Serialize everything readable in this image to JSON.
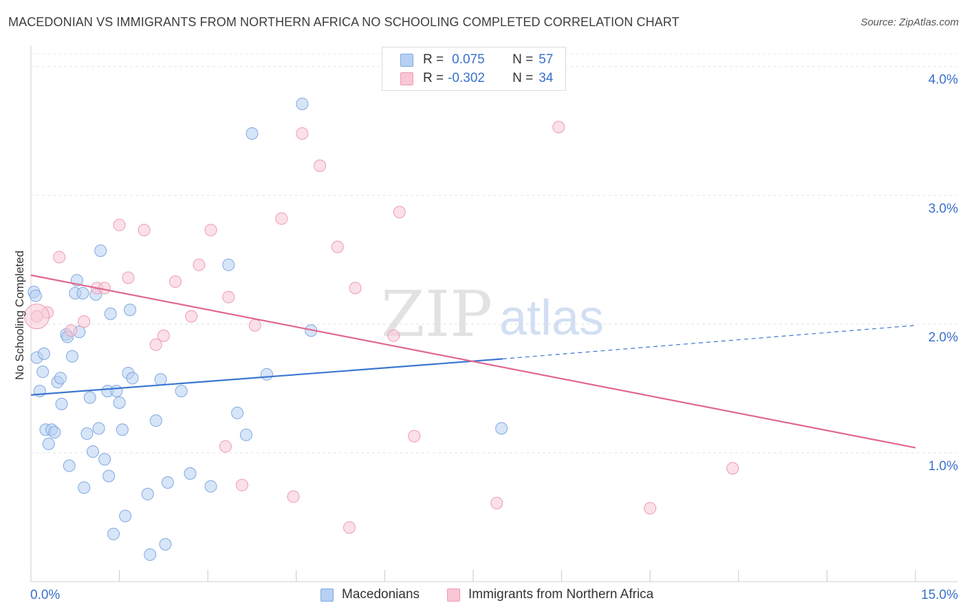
{
  "title": "MACEDONIAN VS IMMIGRANTS FROM NORTHERN AFRICA NO SCHOOLING COMPLETED CORRELATION CHART",
  "source": "Source: ZipAtlas.com",
  "watermark": {
    "zip": "ZIP",
    "atlas": "atlas"
  },
  "stats_legend": {
    "r_label": "R =",
    "n_label": "N =",
    "rows": [
      {
        "r": "0.075",
        "n": "57",
        "fill": "#b6d0f3",
        "stroke": "#7fa8e0"
      },
      {
        "r": "-0.302",
        "n": "34",
        "fill": "#f8c6d4",
        "stroke": "#ec9bb3"
      }
    ]
  },
  "chart_data": {
    "type": "scatter",
    "title": "MACEDONIAN VS IMMIGRANTS FROM NORTHERN AFRICA NO SCHOOLING COMPLETED CORRELATION CHART",
    "xlabel": "",
    "ylabel": "No Schooling Completed",
    "xlim": [
      0,
      15
    ],
    "ylim": [
      0,
      4.1
    ],
    "x_ticks": [
      0,
      1.5,
      3,
      4.5,
      6,
      7.5,
      9,
      10.5,
      12,
      13.5,
      15
    ],
    "x_tick_labels": {
      "min": "0.0%",
      "max": "15.0%"
    },
    "y_ticks": [
      1,
      2,
      3,
      4
    ],
    "y_tick_labels": [
      "1.0%",
      "2.0%",
      "3.0%",
      "4.0%"
    ],
    "grid": "horizontal dashed",
    "legend_position": "bottom-center",
    "series": [
      {
        "name": "Macedonians",
        "color": "#3a76d0",
        "fill": "#b6d0f3",
        "stroke": "#7fa8e0",
        "trend": {
          "x1": 0,
          "y1": 1.45,
          "x2": 8,
          "y2": 1.73,
          "dash_to_x": 15,
          "dash_to_y": 1.99
        },
        "points": [
          [
            0.05,
            2.25
          ],
          [
            0.08,
            2.22
          ],
          [
            0.1,
            1.74
          ],
          [
            0.15,
            1.48
          ],
          [
            0.2,
            1.63
          ],
          [
            0.22,
            1.77
          ],
          [
            0.25,
            1.18
          ],
          [
            0.3,
            1.07
          ],
          [
            0.35,
            1.18
          ],
          [
            0.4,
            1.16
          ],
          [
            0.45,
            1.55
          ],
          [
            0.5,
            1.58
          ],
          [
            0.52,
            1.38
          ],
          [
            0.6,
            1.92
          ],
          [
            0.62,
            1.9
          ],
          [
            0.65,
            0.9
          ],
          [
            0.7,
            1.75
          ],
          [
            0.75,
            2.24
          ],
          [
            0.78,
            2.34
          ],
          [
            0.82,
            1.94
          ],
          [
            0.88,
            2.24
          ],
          [
            0.9,
            0.73
          ],
          [
            0.95,
            1.15
          ],
          [
            1.0,
            1.43
          ],
          [
            1.05,
            1.01
          ],
          [
            1.1,
            2.23
          ],
          [
            1.15,
            1.19
          ],
          [
            1.18,
            2.57
          ],
          [
            1.25,
            0.95
          ],
          [
            1.3,
            1.48
          ],
          [
            1.32,
            0.82
          ],
          [
            1.35,
            2.08
          ],
          [
            1.4,
            0.37
          ],
          [
            1.45,
            1.48
          ],
          [
            1.5,
            1.39
          ],
          [
            1.55,
            1.18
          ],
          [
            1.6,
            0.51
          ],
          [
            1.65,
            1.62
          ],
          [
            1.68,
            2.11
          ],
          [
            1.72,
            1.58
          ],
          [
            1.98,
            0.68
          ],
          [
            2.02,
            0.21
          ],
          [
            2.12,
            1.25
          ],
          [
            2.2,
            1.57
          ],
          [
            2.28,
            0.29
          ],
          [
            2.32,
            0.77
          ],
          [
            2.55,
            1.48
          ],
          [
            2.7,
            0.84
          ],
          [
            3.05,
            0.74
          ],
          [
            3.35,
            2.46
          ],
          [
            3.5,
            1.31
          ],
          [
            3.65,
            1.14
          ],
          [
            3.75,
            3.48
          ],
          [
            4.0,
            1.61
          ],
          [
            4.6,
            3.71
          ],
          [
            4.75,
            1.95
          ],
          [
            7.98,
            1.19
          ]
        ]
      },
      {
        "name": "Immigrants from Northern Africa",
        "color": "#e0678f",
        "fill": "#f8c6d4",
        "stroke": "#ec9bb3",
        "trend": {
          "x1": 0,
          "y1": 2.38,
          "x2": 15,
          "y2": 1.04
        },
        "points": [
          [
            0.1,
            2.06
          ],
          [
            0.28,
            2.09
          ],
          [
            0.48,
            2.52
          ],
          [
            0.68,
            1.95
          ],
          [
            0.9,
            2.02
          ],
          [
            1.12,
            2.28
          ],
          [
            1.25,
            2.28
          ],
          [
            1.5,
            2.77
          ],
          [
            1.65,
            2.36
          ],
          [
            1.92,
            2.73
          ],
          [
            2.12,
            1.84
          ],
          [
            2.25,
            1.91
          ],
          [
            2.45,
            2.33
          ],
          [
            2.72,
            2.06
          ],
          [
            2.85,
            2.46
          ],
          [
            3.05,
            2.73
          ],
          [
            3.3,
            1.05
          ],
          [
            3.35,
            2.21
          ],
          [
            3.58,
            0.75
          ],
          [
            3.8,
            1.99
          ],
          [
            4.25,
            2.82
          ],
          [
            4.45,
            0.66
          ],
          [
            4.6,
            3.48
          ],
          [
            4.9,
            3.23
          ],
          [
            5.2,
            2.6
          ],
          [
            5.4,
            0.42
          ],
          [
            5.5,
            2.28
          ],
          [
            6.15,
            1.91
          ],
          [
            6.25,
            2.87
          ],
          [
            6.5,
            1.13
          ],
          [
            7.9,
            0.61
          ],
          [
            8.95,
            3.53
          ],
          [
            10.5,
            0.57
          ],
          [
            11.9,
            0.88
          ]
        ]
      }
    ]
  }
}
